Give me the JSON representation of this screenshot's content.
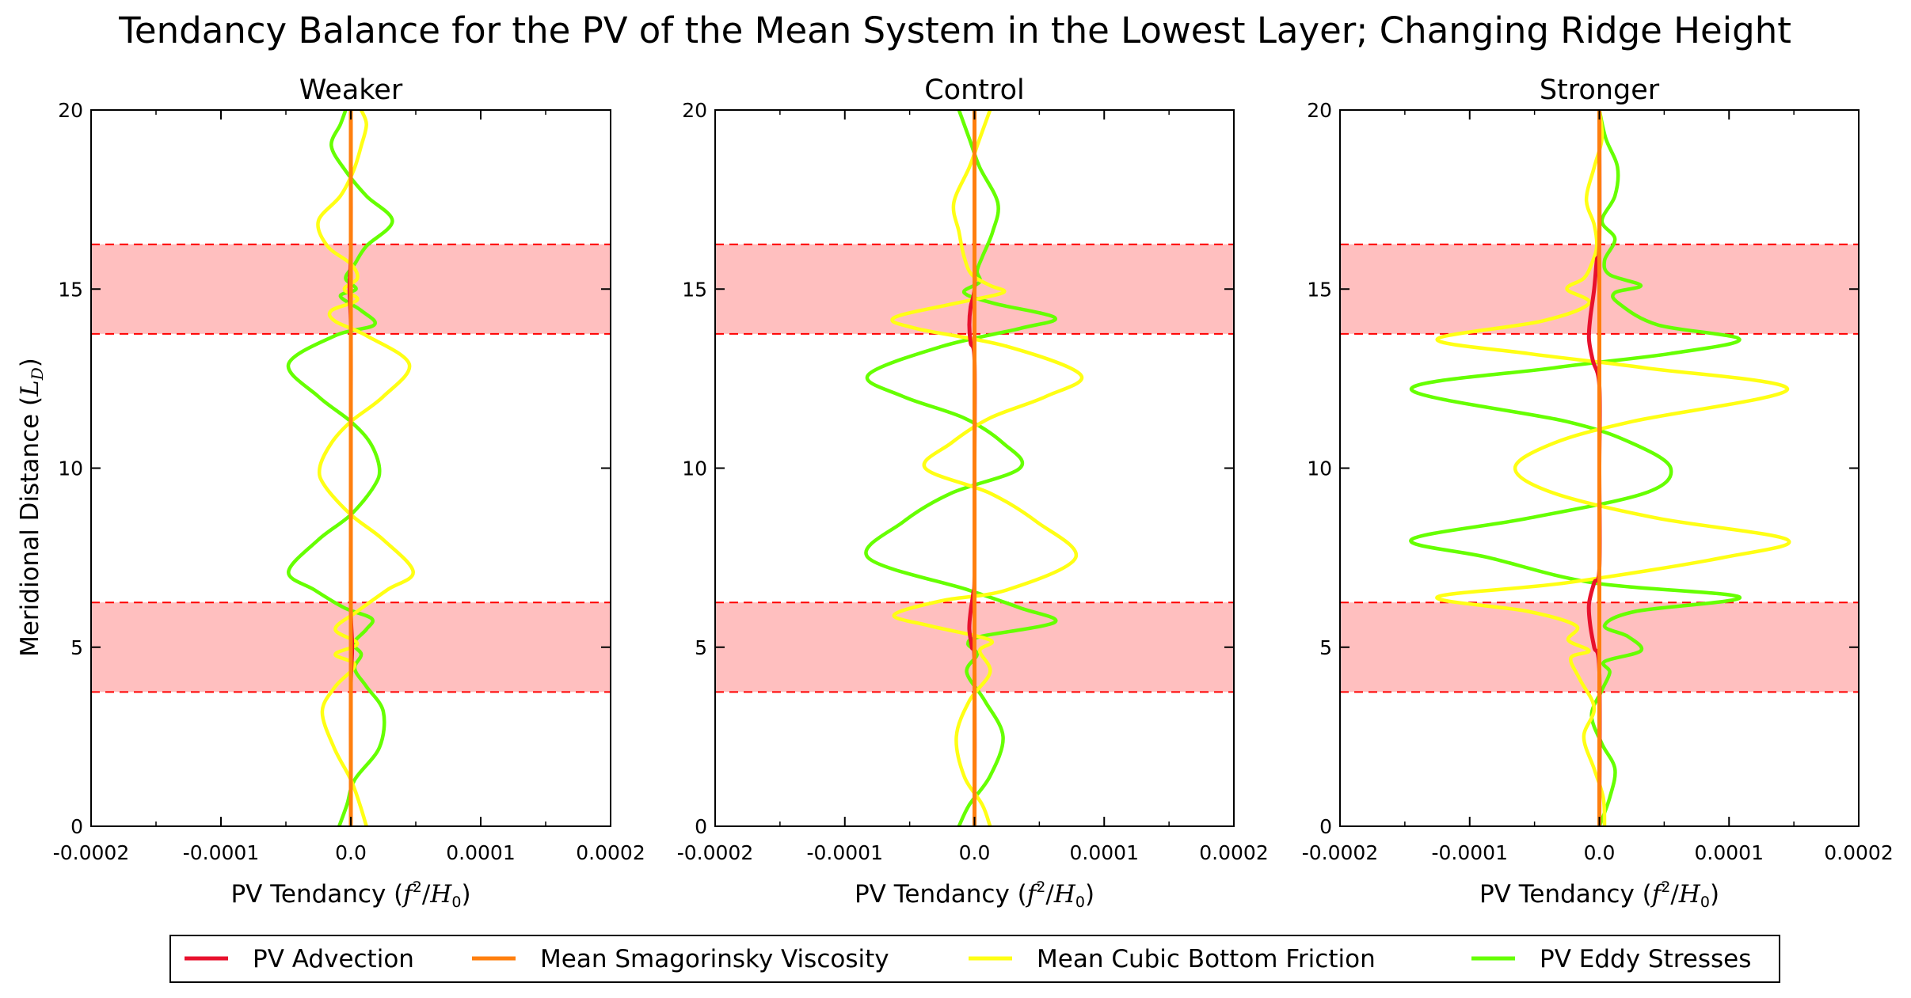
{
  "figure": {
    "title": "Tendancy Balance for the PV of the Mean System in the Lowest Layer; Changing Ridge Height",
    "ylabel": "Meridional Distance",
    "ylabel_unit": "(L_D)",
    "xlabel": "PV Tendancy",
    "xlabel_unit": "(f²/H₀)"
  },
  "colors": {
    "pv_advection": "#e8112d",
    "mean_smagorinsky_viscosity": "#ff7f0e",
    "mean_cubic_bottom_friction": "#ffff14",
    "pv_eddy_stresses": "#66ff00",
    "shading": "#ffbfbf",
    "band_edge": "#ff0000"
  },
  "chart_data": [
    {
      "type": "line",
      "title": "Weaker",
      "xlim": [
        -0.0002,
        0.0002
      ],
      "ylim": [
        0,
        20
      ],
      "xticks": [
        "-0.0002",
        "-0.0001",
        "0.0",
        "0.0001",
        "0.0002"
      ],
      "yticks": [
        "0",
        "5",
        "10",
        "15",
        "20"
      ],
      "grid": false,
      "shaded_bands": [
        [
          3.75,
          6.25
        ],
        [
          13.75,
          16.25
        ]
      ],
      "series": [
        {
          "name": "PV Advection",
          "key": "adv",
          "y": [
            0,
            2,
            4,
            5,
            6,
            8,
            10,
            12,
            14,
            15,
            16,
            18,
            20
          ],
          "x": [
            0,
            0,
            0,
            1e-06,
            0,
            0,
            0,
            0,
            0,
            -1e-06,
            0,
            0,
            0
          ]
        },
        {
          "name": "Mean Smagorinsky Viscosity",
          "key": "visc",
          "y": [
            0,
            20
          ],
          "x": [
            0,
            0
          ]
        },
        {
          "name": "Mean Cubic Bottom Friction",
          "key": "fric",
          "y": [
            0,
            0.6,
            1.3,
            2.2,
            3.2,
            3.9,
            4.5,
            4.8,
            5.1,
            5.5,
            6.0,
            6.6,
            7.1,
            8.0,
            8.7,
            9.5,
            10.0,
            10.7,
            11.3,
            12.0,
            12.9,
            13.7,
            14.1,
            14.4,
            14.7,
            15.0,
            15.3,
            15.7,
            16.2,
            16.9,
            17.6,
            18.3,
            19.0,
            19.6,
            20.0
          ],
          "x": [
            1.2e-05,
            7e-06,
            0,
            -1.3e-05,
            -2.2e-05,
            -1.2e-05,
            3e-06,
            -1.2e-05,
            5e-06,
            -1.2e-05,
            5e-06,
            2.8e-05,
            4.8e-05,
            2.5e-05,
            0,
            -2e-05,
            -2.4e-05,
            -1.5e-05,
            0,
            2.5e-05,
            4.5e-05,
            1.2e-05,
            -1.2e-05,
            -1.5e-05,
            5e-06,
            -5e-06,
            5e-06,
            0,
            -1.8e-05,
            -2.5e-05,
            -8e-06,
            2e-06,
            8e-06,
            1.2e-05,
            8e-06
          ]
        },
        {
          "name": "PV Eddy Stresses",
          "key": "eddy",
          "y": [
            0,
            0.6,
            1.3,
            2.2,
            3.2,
            3.9,
            4.4,
            4.8,
            5.1,
            5.5,
            5.8,
            6.1,
            6.6,
            7.1,
            8.0,
            8.7,
            9.5,
            10.0,
            10.7,
            11.3,
            12.0,
            12.9,
            13.7,
            14.0,
            14.4,
            14.8,
            15.0,
            15.3,
            15.7,
            16.2,
            16.9,
            17.6,
            18.3,
            19.0,
            19.6,
            20.0
          ],
          "x": [
            -9e-06,
            -3e-06,
            3e-06,
            2.2e-05,
            2.5e-05,
            1.2e-05,
            3e-06,
            8e-06,
            2e-06,
            1.2e-05,
            1.6e-05,
            -5e-06,
            -2.8e-05,
            -4.8e-05,
            -2.5e-05,
            0,
            1.8e-05,
            2.2e-05,
            1.5e-05,
            0,
            -2.5e-05,
            -4.8e-05,
            -1.2e-05,
            1.8e-05,
            8e-06,
            -8e-06,
            4e-06,
            -4e-06,
            3e-06,
            1.2e-05,
            3.2e-05,
            1.2e-05,
            -4e-06,
            -1.5e-05,
            -8e-06,
            -4e-06
          ]
        }
      ]
    },
    {
      "type": "line",
      "title": "Control",
      "xlim": [
        -0.0002,
        0.0002
      ],
      "ylim": [
        0,
        20
      ],
      "xticks": [
        "-0.0002",
        "-0.0001",
        "0.0",
        "0.0001",
        "0.0002"
      ],
      "yticks": [
        "0",
        "5",
        "10",
        "15",
        "20"
      ],
      "grid": false,
      "shaded_bands": [
        [
          3.75,
          6.25
        ],
        [
          13.75,
          16.25
        ]
      ],
      "series": [
        {
          "name": "PV Advection",
          "key": "adv",
          "y": [
            0,
            4.5,
            5.0,
            5.5,
            6.0,
            6.5,
            7.0,
            10,
            13,
            13.5,
            14.0,
            14.5,
            15,
            16,
            20
          ],
          "x": [
            0,
            0,
            -2e-06,
            -4e-06,
            -3e-06,
            -1e-06,
            0,
            0,
            0,
            -3e-06,
            -4e-06,
            -3e-06,
            0,
            0,
            0
          ]
        },
        {
          "name": "Mean Smagorinsky Viscosity",
          "key": "visc",
          "y": [
            0,
            20
          ],
          "x": [
            0,
            0
          ]
        },
        {
          "name": "Mean Cubic Bottom Friction",
          "key": "fric",
          "y": [
            0,
            0.6,
            1.4,
            2.5,
            3.5,
            4.3,
            4.9,
            5.2,
            5.6,
            5.9,
            6.3,
            6.6,
            7.5,
            8.5,
            9.3,
            10.0,
            10.7,
            11.4,
            12.0,
            12.6,
            13.4,
            13.9,
            14.2,
            14.6,
            14.9,
            15.1,
            15.4,
            15.9,
            16.6,
            17.4,
            18.4,
            19.2,
            20.0
          ],
          "x": [
            1.2e-05,
            6e-06,
            -8e-06,
            -1.4e-05,
            -4e-06,
            1.2e-05,
            4e-06,
            1.2e-05,
            -3.5e-05,
            -6.2e-05,
            -2.5e-05,
            2.5e-05,
            7.8e-05,
            4.8e-05,
            1.2e-05,
            -3.8e-05,
            -1.8e-05,
            1.2e-05,
            5.5e-05,
            8.2e-05,
            2.5e-05,
            -4.5e-05,
            -6.2e-05,
            -1.5e-05,
            2.2e-05,
            1.2e-05,
            -2e-06,
            -8e-06,
            -1.2e-05,
            -1.6e-05,
            -4e-06,
            4e-06,
            1.2e-05
          ]
        },
        {
          "name": "PV Eddy Stresses",
          "key": "eddy",
          "y": [
            0,
            0.6,
            1.4,
            2.5,
            3.5,
            4.3,
            4.8,
            5.1,
            5.3,
            5.7,
            6.1,
            6.6,
            7.5,
            8.5,
            9.3,
            10.0,
            10.7,
            11.4,
            12.0,
            12.6,
            13.4,
            13.9,
            14.2,
            14.6,
            14.9,
            15.2,
            15.5,
            15.9,
            16.6,
            17.4,
            18.4,
            19.2,
            20.0
          ],
          "x": [
            -1.2e-05,
            -4e-06,
            1.2e-05,
            2.2e-05,
            8e-06,
            -6e-06,
            2e-06,
            -5e-06,
            5e-06,
            6.2e-05,
            3.5e-05,
            -5e-06,
            -8.2e-05,
            -5.5e-05,
            -1.8e-05,
            3.5e-05,
            2.2e-05,
            -8e-06,
            -5.5e-05,
            -8.2e-05,
            -2.5e-05,
            3.5e-05,
            6.2e-05,
            1.5e-05,
            -8e-06,
            4e-06,
            2e-06,
            6e-06,
            1.4e-05,
            1.8e-05,
            4e-06,
            -4e-06,
            -1.2e-05
          ]
        }
      ]
    },
    {
      "type": "line",
      "title": "Stronger",
      "xlim": [
        -0.0002,
        0.0002
      ],
      "ylim": [
        0,
        20
      ],
      "xticks": [
        "-0.0002",
        "-0.0001",
        "0.0",
        "0.0001",
        "0.0002"
      ],
      "yticks": [
        "0",
        "5",
        "10",
        "15",
        "20"
      ],
      "grid": false,
      "shaded_bands": [
        [
          3.75,
          6.25
        ],
        [
          13.75,
          16.25
        ]
      ],
      "series": [
        {
          "name": "PV Advection",
          "key": "adv",
          "y": [
            0,
            4.3,
            5.0,
            5.6,
            6.2,
            6.8,
            7.2,
            10,
            12.3,
            13.0,
            13.6,
            14.2,
            15.0,
            15.8,
            16.3,
            20
          ],
          "x": [
            0,
            0,
            -4e-06,
            -7e-06,
            -8e-06,
            -4e-06,
            0,
            0,
            0,
            -5e-06,
            -8e-06,
            -7e-06,
            -4e-06,
            -2e-06,
            0,
            0
          ]
        },
        {
          "name": "Mean Smagorinsky Viscosity",
          "key": "visc",
          "y": [
            0,
            20
          ],
          "x": [
            0,
            0
          ]
        },
        {
          "name": "Mean Cubic Bottom Friction",
          "key": "fric",
          "y": [
            0,
            0.8,
            1.6,
            2.5,
            3.3,
            4.1,
            4.7,
            4.9,
            5.2,
            5.6,
            6.0,
            6.4,
            6.8,
            7.5,
            8.0,
            8.6,
            9.3,
            10.0,
            10.7,
            11.3,
            12.2,
            12.8,
            13.2,
            13.6,
            14.1,
            14.6,
            15.0,
            15.3,
            15.7,
            16.2,
            16.8,
            17.5,
            18.4,
            19.2,
            20.0
          ],
          "x": [
            4e-06,
            3e-06,
            -4e-06,
            -1.2e-05,
            -4e-06,
            -1.5e-05,
            -2.2e-05,
            -8e-06,
            -2.4e-05,
            -1.8e-05,
            -5.5e-05,
            -0.000125,
            -2.5e-05,
            9.5e-05,
            0.000145,
            4.5e-05,
            -3.5e-05,
            -6.5e-05,
            -3.5e-05,
            2.5e-05,
            0.000145,
            3.5e-05,
            -5.5e-05,
            -0.000125,
            -4.5e-05,
            -8e-06,
            -2.5e-05,
            -1.2e-05,
            -6e-06,
            -2e-06,
            -4e-06,
            -1e-05,
            -4e-06,
            2e-06,
            0
          ]
        },
        {
          "name": "PV Eddy Stresses",
          "key": "eddy",
          "y": [
            0,
            0.8,
            1.6,
            2.3,
            3.1,
            3.8,
            4.3,
            4.6,
            4.9,
            5.3,
            5.6,
            6.0,
            6.4,
            6.8,
            7.5,
            8.0,
            8.6,
            9.3,
            10.0,
            10.7,
            11.3,
            12.2,
            12.8,
            13.2,
            13.6,
            14.0,
            14.6,
            14.9,
            15.1,
            15.4,
            15.8,
            16.4,
            16.9,
            17.6,
            18.4,
            19.2,
            20.0
          ],
          "x": [
            0,
            8e-06,
            1.2e-05,
            2e-06,
            -6e-06,
            2e-06,
            8e-06,
            4e-06,
            3.2e-05,
            2.2e-05,
            4e-06,
            2.8e-05,
            0.000108,
            -5e-06,
            -8.5e-05,
            -0.000145,
            -5.5e-05,
            3.5e-05,
            5.5e-05,
            2.5e-05,
            -2.5e-05,
            -0.000145,
            -3.5e-05,
            5.5e-05,
            0.000108,
            4.5e-05,
            1.5e-05,
            1.2e-05,
            3.2e-05,
            8e-06,
            4e-06,
            1.2e-05,
            2e-06,
            1.2e-05,
            1.4e-05,
            5e-06,
            0
          ]
        }
      ]
    }
  ],
  "legend": {
    "placement": "bottom",
    "entries": [
      {
        "label": "PV Advection",
        "key": "adv"
      },
      {
        "label": "Mean Smagorinsky Viscosity",
        "key": "visc"
      },
      {
        "label": "Mean Cubic Bottom Friction",
        "key": "fric"
      },
      {
        "label": "PV Eddy Stresses",
        "key": "eddy"
      }
    ]
  }
}
